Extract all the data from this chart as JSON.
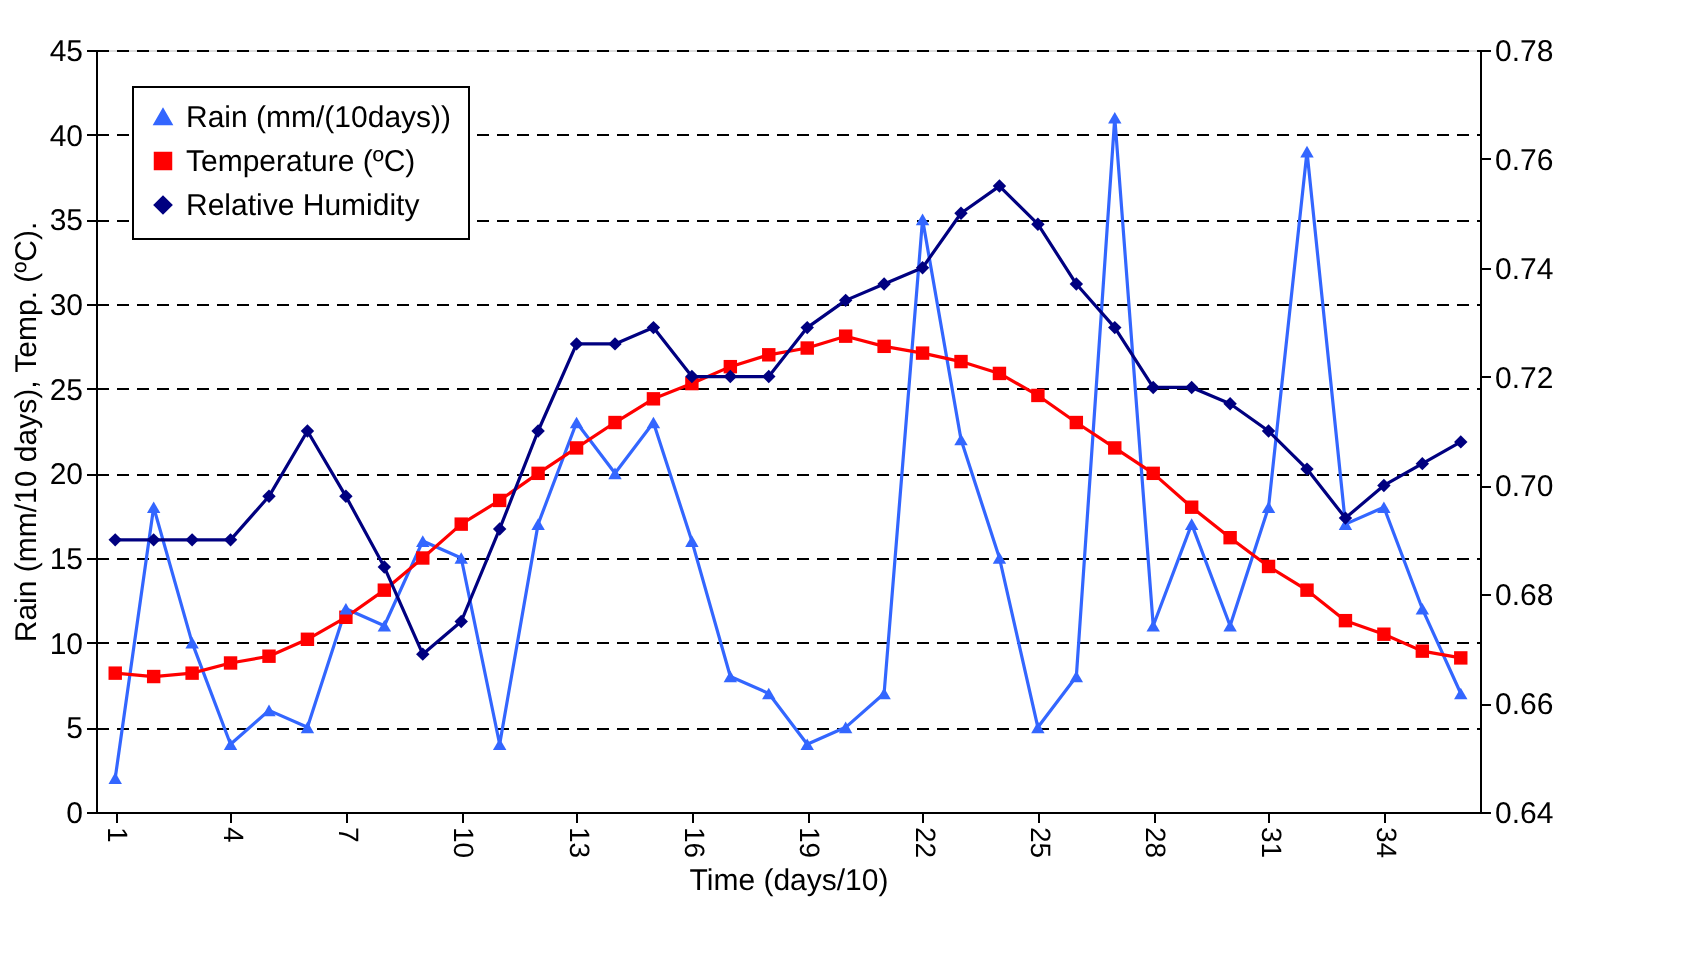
{
  "chart_data": {
    "type": "line",
    "xlabel": "Time (days/10)",
    "ylabel": "Rain (mm/10 days), Temp. (ºC).",
    "x": [
      1,
      2,
      3,
      4,
      5,
      6,
      7,
      8,
      9,
      10,
      11,
      12,
      13,
      14,
      15,
      16,
      17,
      18,
      19,
      20,
      21,
      22,
      23,
      24,
      25,
      26,
      27,
      28,
      29,
      30,
      31,
      32,
      33,
      34,
      35,
      36
    ],
    "xlim": [
      0.5,
      36.5
    ],
    "xticks": [
      1,
      4,
      7,
      10,
      13,
      16,
      19,
      22,
      25,
      28,
      31,
      34
    ],
    "ylim": [
      0,
      45
    ],
    "yticks": [
      0,
      5,
      10,
      15,
      20,
      25,
      30,
      35,
      40,
      45
    ],
    "y2lim": [
      0.64,
      0.78
    ],
    "y2ticks": [
      {
        "value": 0.64,
        "label": "0.64"
      },
      {
        "value": 0.66,
        "label": "0.66"
      },
      {
        "value": 0.68,
        "label": "0.68"
      },
      {
        "value": 0.7,
        "label": "0.70"
      },
      {
        "value": 0.72,
        "label": "0.72"
      },
      {
        "value": 0.74,
        "label": "0.74"
      },
      {
        "value": 0.76,
        "label": "0.76"
      },
      {
        "value": 0.78,
        "label": "0.78"
      }
    ],
    "grid": "y",
    "legend": "top left",
    "line_style": "solid",
    "series": [
      {
        "name": "Rain (mm/(10days))",
        "color": "#3366ff",
        "marker": "triangle",
        "values": [
          2,
          18,
          10,
          4,
          6,
          5,
          12,
          11,
          16,
          15,
          4,
          17,
          23,
          20,
          23,
          16,
          8,
          7,
          4,
          5,
          7,
          35,
          22,
          15,
          5,
          8,
          41,
          11,
          17,
          11,
          18,
          39,
          17,
          18,
          12,
          7
        ]
      },
      {
        "name": "Temperature (ºC)",
        "color": "#ff0000",
        "marker": "square",
        "values": [
          8.2,
          8.0,
          8.2,
          8.8,
          9.2,
          10.2,
          11.5,
          13.1,
          15.0,
          17.0,
          18.4,
          20.0,
          21.5,
          23.0,
          24.4,
          25.3,
          26.3,
          27.0,
          27.4,
          28.1,
          27.5,
          27.1,
          26.6,
          25.9,
          24.6,
          23.0,
          21.5,
          20.0,
          18.0,
          16.2,
          14.5,
          13.1,
          11.3,
          10.5,
          9.5,
          9.1
        ]
      },
      {
        "name": "Relative Humidity",
        "color": "#000080",
        "marker": "diamond",
        "axis": "y2",
        "values": [
          0.69,
          0.69,
          0.69,
          0.69,
          0.698,
          0.71,
          0.698,
          0.685,
          0.669,
          0.675,
          0.692,
          0.71,
          0.726,
          0.726,
          0.729,
          0.72,
          0.72,
          0.72,
          0.729,
          0.734,
          0.737,
          0.74,
          0.75,
          0.755,
          0.748,
          0.737,
          0.729,
          0.718,
          0.718,
          0.715,
          0.71,
          0.703,
          0.694,
          0.7,
          0.704,
          0.708
        ]
      }
    ]
  }
}
